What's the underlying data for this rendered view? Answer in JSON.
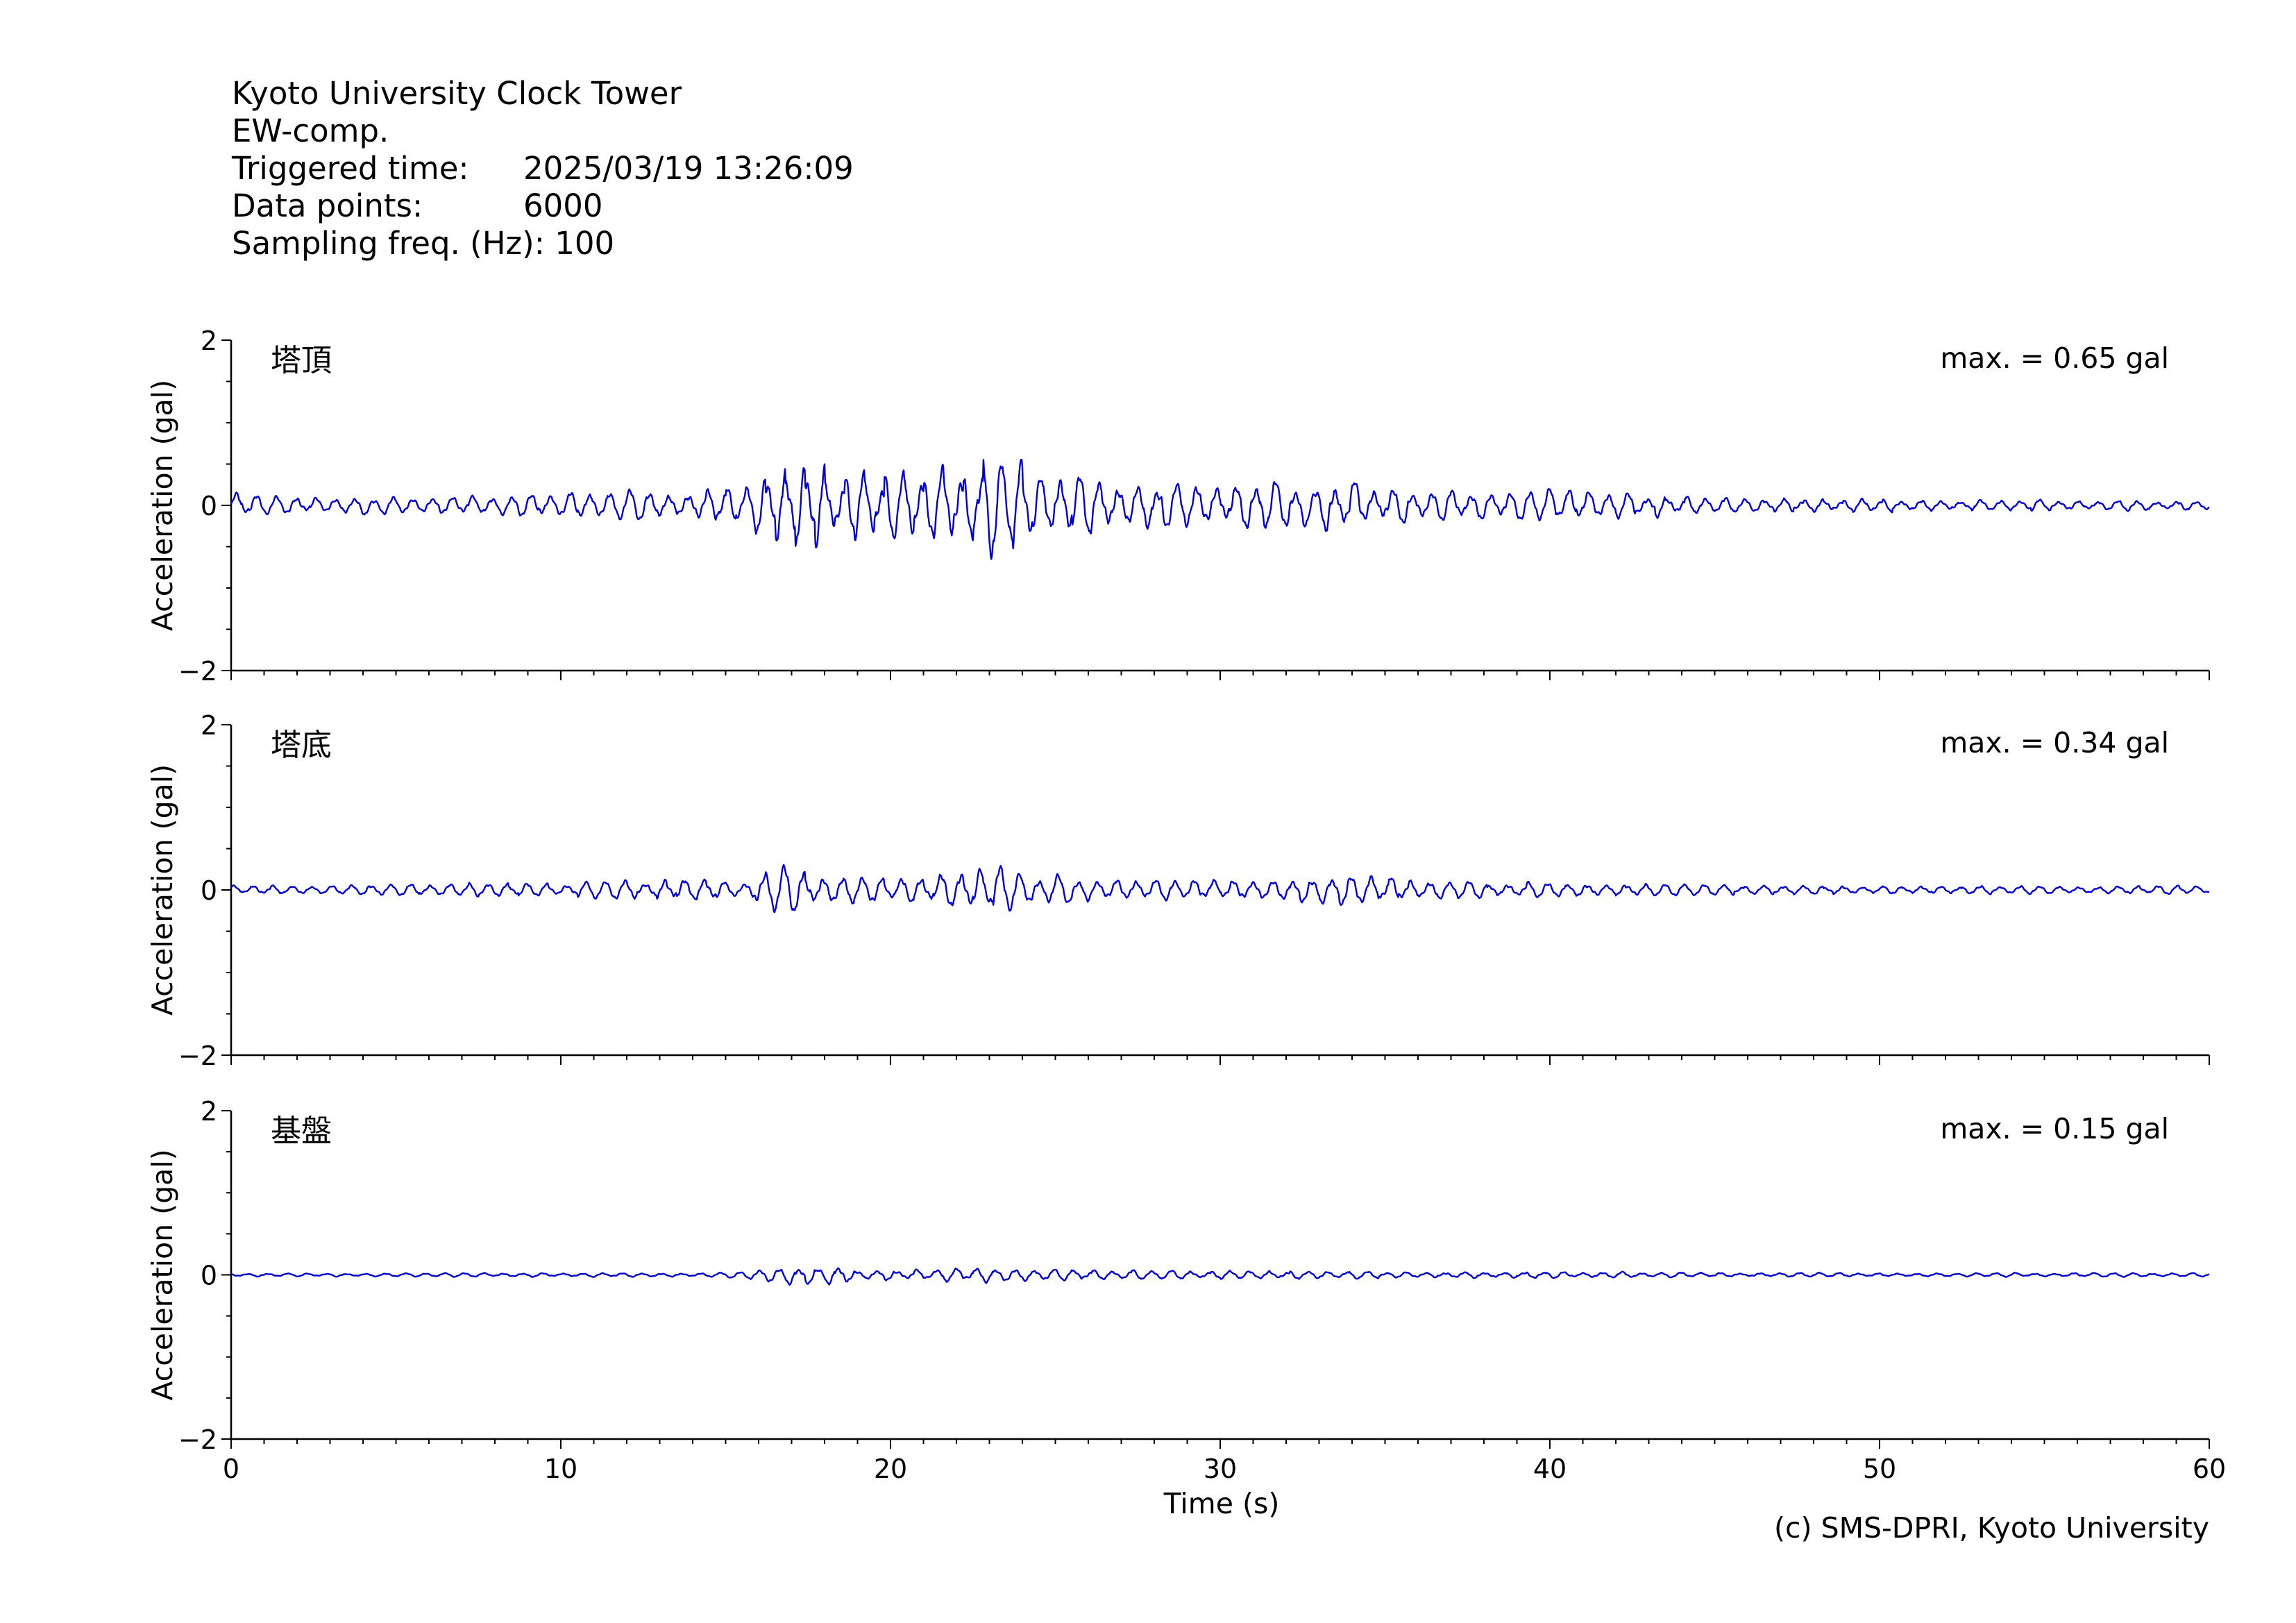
{
  "header": {
    "station": "Kyoto University Clock Tower",
    "component": "EW-comp.",
    "triggered_label": "Triggered time:",
    "triggered_value": "2025/03/19 13:26:09",
    "points_label": "Data points:",
    "points_value": "6000",
    "freq_label": "Sampling freq. (Hz):",
    "freq_value": "100"
  },
  "footer": {
    "copyright": "(c) SMS-DPRI, Kyoto University"
  },
  "colors": {
    "trace": "#0000d4",
    "axis": "#000000"
  },
  "chart_data": {
    "type": "line",
    "xlabel": "Time (s)",
    "xlim": [
      0,
      60
    ],
    "x_ticks": [
      0,
      10,
      20,
      30,
      40,
      50,
      60
    ],
    "panels": [
      {
        "name": "塔頂",
        "ylabel": "Acceleration (gal)",
        "ylim": [
          -2,
          2
        ],
        "y_ticks": [
          -2,
          0,
          2
        ],
        "max_label": "max. = 0.65 gal",
        "envelope": {
          "t": [
            0,
            1,
            3,
            5,
            8,
            12,
            14,
            15.5,
            16,
            17,
            18,
            19,
            20,
            21,
            22,
            23,
            24,
            25,
            26,
            28,
            30,
            32,
            34,
            36,
            38,
            40,
            45,
            50,
            55,
            60
          ],
          "amp": [
            0.2,
            0.12,
            0.1,
            0.12,
            0.12,
            0.18,
            0.2,
            0.22,
            0.4,
            0.55,
            0.45,
            0.4,
            0.4,
            0.4,
            0.5,
            0.62,
            0.5,
            0.42,
            0.35,
            0.3,
            0.28,
            0.3,
            0.3,
            0.2,
            0.18,
            0.2,
            0.1,
            0.08,
            0.07,
            0.07
          ]
        },
        "dominant_period_s": 0.6
      },
      {
        "name": "塔底",
        "ylabel": "Acceleration (gal)",
        "ylim": [
          -2,
          2
        ],
        "y_ticks": [
          -2,
          0,
          2
        ],
        "max_label": "max. = 0.34 gal",
        "envelope": {
          "t": [
            0,
            3,
            6,
            10,
            12,
            14,
            15.5,
            16,
            17,
            18,
            19,
            20,
            21,
            22,
            23,
            24,
            25,
            26,
            28,
            30,
            32,
            34,
            36,
            38,
            40,
            45,
            50,
            55,
            60
          ],
          "amp": [
            0.05,
            0.05,
            0.08,
            0.08,
            0.12,
            0.15,
            0.08,
            0.22,
            0.3,
            0.2,
            0.18,
            0.14,
            0.18,
            0.24,
            0.28,
            0.24,
            0.18,
            0.14,
            0.12,
            0.14,
            0.14,
            0.2,
            0.12,
            0.1,
            0.1,
            0.06,
            0.05,
            0.05,
            0.05
          ]
        },
        "dominant_period_s": 0.6
      },
      {
        "name": "基盤",
        "ylabel": "Acceleration (gal)",
        "ylim": [
          -2,
          2
        ],
        "y_ticks": [
          -2,
          0,
          2
        ],
        "max_label": "max. = 0.15 gal",
        "envelope": {
          "t": [
            0,
            10,
            15,
            16,
            17,
            18,
            18.5,
            19,
            20,
            21,
            22,
            23,
            24,
            25,
            27,
            30,
            33,
            36,
            40,
            45,
            50,
            60
          ],
          "amp": [
            0.02,
            0.025,
            0.03,
            0.07,
            0.12,
            0.1,
            0.14,
            0.08,
            0.06,
            0.07,
            0.08,
            0.09,
            0.08,
            0.07,
            0.06,
            0.05,
            0.05,
            0.04,
            0.04,
            0.03,
            0.025,
            0.025
          ]
        },
        "dominant_period_s": 0.6
      }
    ]
  }
}
